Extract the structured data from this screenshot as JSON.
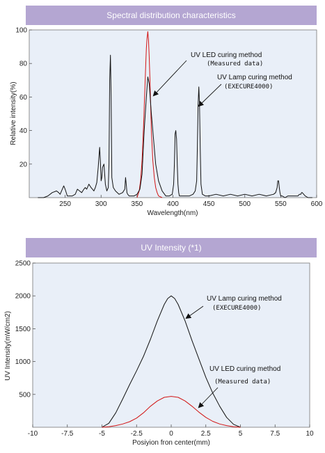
{
  "chart_data": [
    {
      "type": "line",
      "title": "Spectral distribution characteristics",
      "xlabel": "Wavelength(nm)",
      "ylabel": "Relative intensity(%)",
      "xlim": [
        200,
        600
      ],
      "ylim": [
        0,
        100
      ],
      "x_ticks": [
        "250",
        "300",
        "350",
        "400",
        "450",
        "500",
        "550",
        "600"
      ],
      "y_ticks": [
        "20",
        "40",
        "60",
        "80",
        "100"
      ],
      "grid": false,
      "annotations": [
        {
          "line1": "UV LED curing method",
          "line2": "(Measured data)"
        },
        {
          "line1": "UV Lamp curing method",
          "line2": "(EXECURE4000)"
        }
      ],
      "series": [
        {
          "color": "#d21414",
          "x": [
            350,
            353,
            355,
            357,
            359,
            361,
            362,
            363,
            364,
            365,
            366,
            367,
            368,
            369,
            370,
            372,
            374,
            376,
            378,
            380,
            385
          ],
          "y": [
            0,
            4,
            10,
            22,
            42,
            65,
            78,
            89,
            95,
            99,
            94,
            84,
            70,
            55,
            40,
            22,
            12,
            6,
            3,
            1,
            0
          ]
        },
        {
          "color": "#111111",
          "x": [
            212,
            220,
            226,
            232,
            238,
            241,
            243,
            246,
            248,
            250,
            253,
            256,
            260,
            264,
            267,
            270,
            273,
            276,
            278,
            280,
            283,
            286,
            288,
            290,
            292,
            294,
            296,
            298,
            299,
            300,
            301,
            302,
            304,
            305,
            306,
            308,
            310,
            311,
            312,
            313,
            314,
            315,
            317,
            320,
            325,
            330,
            333,
            334,
            335,
            336,
            337,
            339,
            342,
            346,
            350,
            354,
            357,
            360,
            363,
            365,
            367,
            370,
            373,
            376,
            380,
            385,
            390,
            395,
            399,
            401,
            402,
            403,
            404,
            405,
            406,
            407,
            408,
            409,
            410,
            413,
            418,
            423,
            428,
            431,
            433,
            434,
            435,
            436,
            437,
            438,
            439,
            441,
            445,
            450,
            460,
            470,
            480,
            490,
            500,
            510,
            520,
            530,
            540,
            543,
            545,
            546,
            547,
            548,
            549,
            550,
            552,
            556,
            560,
            565,
            570,
            574,
            576,
            578,
            579,
            580,
            582,
            584,
            588,
            594
          ],
          "y": [
            0,
            0,
            1,
            3,
            4,
            3,
            2,
            5,
            7,
            5,
            1,
            1,
            1,
            2,
            5,
            4,
            3,
            5,
            6,
            5,
            8,
            6,
            5,
            4,
            6,
            9,
            18,
            30,
            22,
            10,
            12,
            18,
            20,
            14,
            8,
            4,
            6,
            20,
            70,
            85,
            60,
            12,
            6,
            4,
            2,
            3,
            5,
            12,
            8,
            3,
            2,
            1,
            1,
            1,
            2,
            5,
            14,
            40,
            60,
            72,
            68,
            50,
            35,
            20,
            10,
            4,
            1,
            1,
            2,
            8,
            20,
            38,
            40,
            35,
            20,
            8,
            3,
            1,
            1,
            1,
            1,
            1,
            2,
            4,
            10,
            30,
            55,
            66,
            55,
            30,
            8,
            2,
            1,
            1,
            2,
            1,
            2,
            1,
            2,
            1,
            2,
            1,
            2,
            3,
            6,
            10,
            10,
            6,
            3,
            1,
            1,
            0,
            1,
            1,
            1,
            1,
            2,
            2,
            3,
            3,
            2,
            1,
            0,
            0
          ]
        }
      ]
    },
    {
      "type": "line",
      "title": "UV Intensity (*1)",
      "xlabel": "Posiyion fron center(mm)",
      "ylabel": "UV Intensity(mW/cm2)",
      "xlim": [
        -10,
        10
      ],
      "ylim": [
        0,
        2500
      ],
      "x_ticks": [
        "-10",
        "-7.5",
        "-5",
        "-2.5",
        "0",
        "2.5",
        "5",
        "7.5",
        "10"
      ],
      "y_ticks": [
        "500",
        "1000",
        "1500",
        "2000",
        "2500"
      ],
      "grid": false,
      "annotations": [
        {
          "line1": "UV Lamp curing method",
          "line2": "(EXECURE4000)"
        },
        {
          "line1": "UV LED curing method",
          "line2": "(Measured data)"
        }
      ],
      "series": [
        {
          "color": "#111111",
          "x": [
            -5,
            -4.5,
            -4,
            -3.5,
            -3,
            -2.5,
            -2,
            -1.5,
            -1,
            -0.5,
            -0.25,
            0,
            0.25,
            0.5,
            1,
            1.5,
            2,
            2.5,
            3,
            3.5,
            4,
            4.5,
            5
          ],
          "y": [
            0,
            60,
            220,
            430,
            650,
            860,
            1080,
            1340,
            1620,
            1870,
            1960,
            2000,
            1960,
            1870,
            1620,
            1320,
            1040,
            760,
            520,
            320,
            150,
            45,
            0
          ]
        },
        {
          "color": "#d21414",
          "x": [
            -5,
            -4.5,
            -4,
            -3.5,
            -3,
            -2.5,
            -2,
            -1.5,
            -1,
            -0.5,
            0,
            0.5,
            1,
            1.5,
            2,
            2.5,
            3,
            3.5,
            4,
            4.5,
            5
          ],
          "y": [
            0,
            8,
            25,
            50,
            85,
            140,
            220,
            320,
            400,
            455,
            470,
            455,
            400,
            320,
            230,
            150,
            90,
            50,
            25,
            8,
            0
          ]
        }
      ]
    }
  ]
}
